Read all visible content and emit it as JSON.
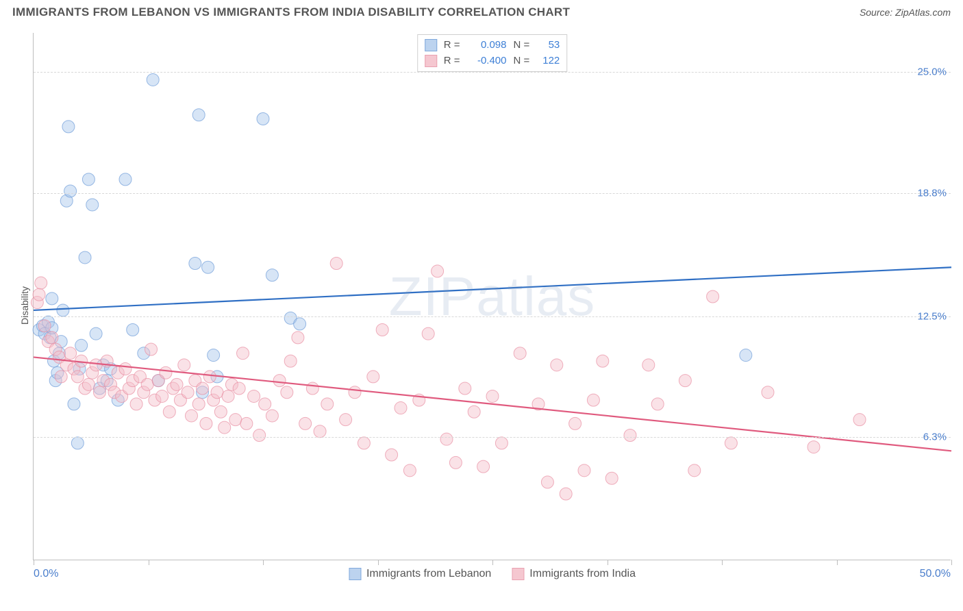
{
  "title": "IMMIGRANTS FROM LEBANON VS IMMIGRANTS FROM INDIA DISABILITY CORRELATION CHART",
  "source": "Source: ZipAtlas.com",
  "ylabel": "Disability",
  "watermark": "ZIPatlas",
  "chart": {
    "type": "scatter",
    "background_color": "#ffffff",
    "grid_color": "#d8d8d8",
    "axis_color": "#bdbdbd",
    "xlim": [
      0,
      50
    ],
    "ylim": [
      0,
      27
    ],
    "xaxis_labels": [
      {
        "pos": 0,
        "text": "0.0%",
        "color": "#4a7ecc",
        "align": "left"
      },
      {
        "pos": 50,
        "text": "50.0%",
        "color": "#4a7ecc",
        "align": "right"
      }
    ],
    "xtick_positions": [
      0,
      6.25,
      12.5,
      18.75,
      25,
      31.25,
      37.5,
      43.75,
      50
    ],
    "yticks": [
      {
        "value": 6.3,
        "label": "6.3%",
        "color": "#4a7ecc"
      },
      {
        "value": 12.5,
        "label": "12.5%",
        "color": "#4a7ecc"
      },
      {
        "value": 18.8,
        "label": "18.8%",
        "color": "#4a7ecc"
      },
      {
        "value": 25.0,
        "label": "25.0%",
        "color": "#4a7ecc"
      }
    ],
    "marker_radius": 9,
    "marker_opacity": 0.45,
    "line_width": 2.2,
    "series": [
      {
        "name": "Immigrants from Lebanon",
        "color_fill": "#a7c6ec",
        "color_stroke": "#6f9dd8",
        "swatch_fill": "#bcd3ef",
        "swatch_border": "#7fa8dc",
        "line_color": "#2f6fc4",
        "R": "0.098",
        "N": "53",
        "trend": {
          "y_at_x0": 12.8,
          "y_at_x50": 15.0
        },
        "points": [
          [
            0.3,
            11.8
          ],
          [
            0.5,
            12.0
          ],
          [
            0.6,
            11.6
          ],
          [
            0.8,
            12.2
          ],
          [
            0.9,
            11.4
          ],
          [
            1.0,
            11.9
          ],
          [
            1.0,
            13.4
          ],
          [
            1.1,
            10.2
          ],
          [
            1.2,
            9.2
          ],
          [
            1.3,
            9.6
          ],
          [
            1.4,
            10.6
          ],
          [
            1.5,
            11.2
          ],
          [
            1.6,
            12.8
          ],
          [
            1.8,
            18.4
          ],
          [
            1.9,
            22.2
          ],
          [
            2.0,
            18.9
          ],
          [
            2.2,
            8.0
          ],
          [
            2.4,
            6.0
          ],
          [
            2.5,
            9.8
          ],
          [
            2.6,
            11.0
          ],
          [
            2.8,
            15.5
          ],
          [
            3.0,
            19.5
          ],
          [
            3.2,
            18.2
          ],
          [
            3.4,
            11.6
          ],
          [
            3.6,
            8.8
          ],
          [
            3.8,
            10.0
          ],
          [
            4.0,
            9.2
          ],
          [
            4.2,
            9.8
          ],
          [
            4.6,
            8.2
          ],
          [
            5.0,
            19.5
          ],
          [
            5.4,
            11.8
          ],
          [
            6.0,
            10.6
          ],
          [
            6.5,
            24.6
          ],
          [
            6.8,
            9.2
          ],
          [
            8.8,
            15.2
          ],
          [
            9.0,
            22.8
          ],
          [
            9.2,
            8.6
          ],
          [
            9.5,
            15.0
          ],
          [
            9.8,
            10.5
          ],
          [
            10.0,
            9.4
          ],
          [
            12.5,
            22.6
          ],
          [
            13.0,
            14.6
          ],
          [
            14.0,
            12.4
          ],
          [
            14.5,
            12.1
          ],
          [
            38.8,
            10.5
          ]
        ]
      },
      {
        "name": "Immigrants from India",
        "color_fill": "#f4bfc9",
        "color_stroke": "#e88fa2",
        "swatch_fill": "#f5c7d0",
        "swatch_border": "#e9a0b0",
        "line_color": "#e05a7e",
        "R": "-0.400",
        "N": "122",
        "trend": {
          "y_at_x0": 10.4,
          "y_at_x50": 5.6
        },
        "points": [
          [
            0.2,
            13.2
          ],
          [
            0.3,
            13.6
          ],
          [
            0.4,
            14.2
          ],
          [
            0.6,
            12.0
          ],
          [
            0.8,
            11.2
          ],
          [
            1.0,
            11.4
          ],
          [
            1.2,
            10.8
          ],
          [
            1.4,
            10.4
          ],
          [
            1.5,
            9.4
          ],
          [
            1.8,
            10.0
          ],
          [
            2.0,
            10.6
          ],
          [
            2.2,
            9.8
          ],
          [
            2.4,
            9.4
          ],
          [
            2.6,
            10.2
          ],
          [
            2.8,
            8.8
          ],
          [
            3.0,
            9.0
          ],
          [
            3.2,
            9.6
          ],
          [
            3.4,
            10.0
          ],
          [
            3.6,
            8.6
          ],
          [
            3.8,
            9.2
          ],
          [
            4.0,
            10.2
          ],
          [
            4.2,
            9.0
          ],
          [
            4.4,
            8.6
          ],
          [
            4.6,
            9.6
          ],
          [
            4.8,
            8.4
          ],
          [
            5.0,
            9.8
          ],
          [
            5.2,
            8.8
          ],
          [
            5.4,
            9.2
          ],
          [
            5.6,
            8.0
          ],
          [
            5.8,
            9.4
          ],
          [
            6.0,
            8.6
          ],
          [
            6.2,
            9.0
          ],
          [
            6.4,
            10.8
          ],
          [
            6.6,
            8.2
          ],
          [
            6.8,
            9.2
          ],
          [
            7.0,
            8.4
          ],
          [
            7.2,
            9.6
          ],
          [
            7.4,
            7.6
          ],
          [
            7.6,
            8.8
          ],
          [
            7.8,
            9.0
          ],
          [
            8.0,
            8.2
          ],
          [
            8.2,
            10.0
          ],
          [
            8.4,
            8.6
          ],
          [
            8.6,
            7.4
          ],
          [
            8.8,
            9.2
          ],
          [
            9.0,
            8.0
          ],
          [
            9.2,
            8.8
          ],
          [
            9.4,
            7.0
          ],
          [
            9.6,
            9.4
          ],
          [
            9.8,
            8.2
          ],
          [
            10.0,
            8.6
          ],
          [
            10.2,
            7.6
          ],
          [
            10.4,
            6.8
          ],
          [
            10.6,
            8.4
          ],
          [
            10.8,
            9.0
          ],
          [
            11.0,
            7.2
          ],
          [
            11.2,
            8.8
          ],
          [
            11.4,
            10.6
          ],
          [
            11.6,
            7.0
          ],
          [
            12.0,
            8.4
          ],
          [
            12.3,
            6.4
          ],
          [
            12.6,
            8.0
          ],
          [
            13.0,
            7.4
          ],
          [
            13.4,
            9.2
          ],
          [
            13.8,
            8.6
          ],
          [
            14.0,
            10.2
          ],
          [
            14.4,
            11.4
          ],
          [
            14.8,
            7.0
          ],
          [
            15.2,
            8.8
          ],
          [
            15.6,
            6.6
          ],
          [
            16.0,
            8.0
          ],
          [
            16.5,
            15.2
          ],
          [
            17.0,
            7.2
          ],
          [
            17.5,
            8.6
          ],
          [
            18.0,
            6.0
          ],
          [
            18.5,
            9.4
          ],
          [
            19.0,
            11.8
          ],
          [
            19.5,
            5.4
          ],
          [
            20.0,
            7.8
          ],
          [
            20.5,
            4.6
          ],
          [
            21.0,
            8.2
          ],
          [
            21.5,
            11.6
          ],
          [
            22.0,
            14.8
          ],
          [
            22.5,
            6.2
          ],
          [
            23.0,
            5.0
          ],
          [
            23.5,
            8.8
          ],
          [
            24.0,
            7.6
          ],
          [
            24.5,
            4.8
          ],
          [
            25.0,
            8.4
          ],
          [
            25.5,
            6.0
          ],
          [
            26.5,
            10.6
          ],
          [
            27.5,
            8.0
          ],
          [
            28.0,
            4.0
          ],
          [
            28.5,
            10.0
          ],
          [
            29.0,
            3.4
          ],
          [
            29.5,
            7.0
          ],
          [
            30.0,
            4.6
          ],
          [
            30.5,
            8.2
          ],
          [
            31.0,
            10.2
          ],
          [
            31.5,
            4.2
          ],
          [
            32.5,
            6.4
          ],
          [
            33.5,
            10.0
          ],
          [
            34.0,
            8.0
          ],
          [
            35.5,
            9.2
          ],
          [
            36.0,
            4.6
          ],
          [
            37.0,
            13.5
          ],
          [
            38.0,
            6.0
          ],
          [
            40.0,
            8.6
          ],
          [
            42.5,
            5.8
          ],
          [
            45.0,
            7.2
          ]
        ]
      }
    ]
  },
  "topLegend": {
    "r_prefix": "R",
    "n_prefix": "N",
    "equals": "=",
    "value_color": "#3d7fd6",
    "text_color": "#555555"
  },
  "bottomLegend_text_color": "#555555"
}
